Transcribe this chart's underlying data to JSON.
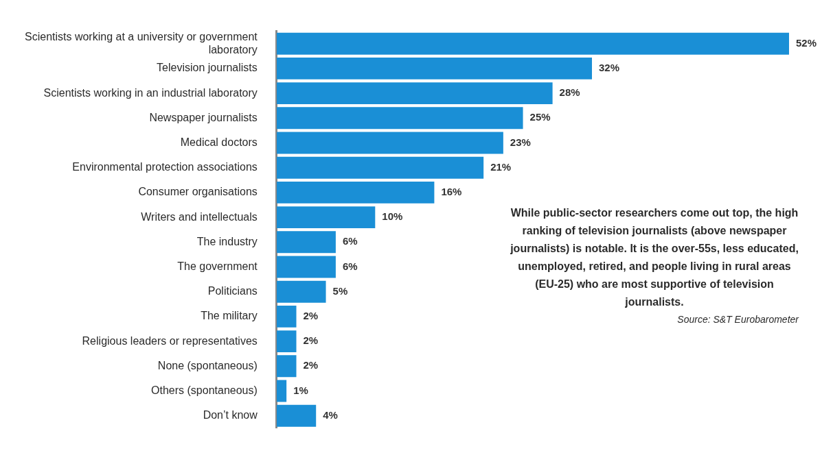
{
  "chart_data": {
    "type": "bar",
    "orientation": "horizontal",
    "categories": [
      "Scientists working at a university or government laboratory",
      "Television journalists",
      "Scientists working in an industrial laboratory",
      "Newspaper journalists",
      "Medical doctors",
      "Environmental protection associations",
      "Consumer organisations",
      "Writers and intellectuals",
      "The industry",
      "The government",
      "Politicians",
      "The military",
      "Religious leaders or representatives",
      "None (spontaneous)",
      "Others (spontaneous)",
      "Don’t know"
    ],
    "values": [
      52,
      32,
      28,
      25,
      23,
      21,
      16,
      10,
      6,
      6,
      5,
      2,
      2,
      2,
      1,
      4
    ],
    "value_labels": [
      "52%",
      "32%",
      "28%",
      "25%",
      "23%",
      "21%",
      "16%",
      "10%",
      "6%",
      "6%",
      "5%",
      "2%",
      "2%",
      "2%",
      "1%",
      "4%"
    ],
    "color": "#1a8fd6",
    "xlim": [
      0,
      52
    ],
    "legend": false,
    "annotations": [
      "While public-sector researchers come out top, the high ranking of television journalists (above newspaper journalists) is notable. It is the over-55s, less educated, unemployed, retired, and people living in rural areas (EU-25) who are most supportive of television journalists.",
      "Source: S&T Eurobarometer"
    ]
  }
}
